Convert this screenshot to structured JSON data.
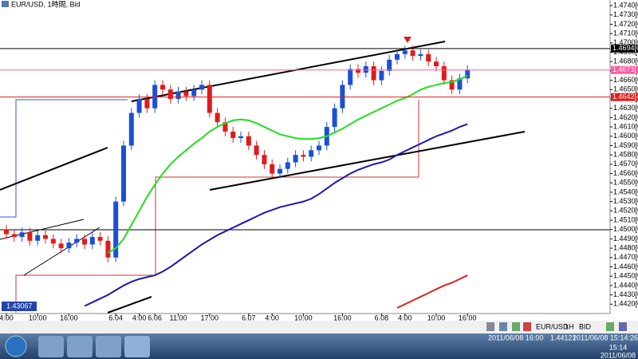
{
  "chart_data": {
    "type": "candlestick",
    "title": "EUR/USD, 1時間, Bid",
    "up_color": "#1a4fd6",
    "down_color": "#e01b1b",
    "ylim": [
      1.441,
      1.4746
    ],
    "yticks": [
      {
        "value": 1.442,
        "label": "1.4420[0]"
      },
      {
        "value": 1.443,
        "label": "1.4430[0]"
      },
      {
        "value": 1.444,
        "label": "1.4440[0]"
      },
      {
        "value": 1.445,
        "label": "1.4450[0]"
      },
      {
        "value": 1.446,
        "label": "1.4460[0]"
      },
      {
        "value": 1.447,
        "label": "1.4470[0]"
      },
      {
        "value": 1.448,
        "label": "1.4480[0]"
      },
      {
        "value": 1.449,
        "label": "1.4490[0]"
      },
      {
        "value": 1.45,
        "label": "1.4500[0]"
      },
      {
        "value": 1.451,
        "label": "1.4510[0]"
      },
      {
        "value": 1.452,
        "label": "1.4520[0]"
      },
      {
        "value": 1.453,
        "label": "1.4530[0]"
      },
      {
        "value": 1.454,
        "label": "1.4540[0]"
      },
      {
        "value": 1.455,
        "label": "1.4550[0]"
      },
      {
        "value": 1.456,
        "label": "1.4560[0]"
      },
      {
        "value": 1.457,
        "label": "1.4570[0]"
      },
      {
        "value": 1.458,
        "label": "1.4580[0]"
      },
      {
        "value": 1.459,
        "label": "1.4590[0]"
      },
      {
        "value": 1.46,
        "label": "1.4600[0]"
      },
      {
        "value": 1.461,
        "label": "1.4610[0]"
      },
      {
        "value": 1.462,
        "label": "1.4620[0]"
      },
      {
        "value": 1.463,
        "label": "1.4630[0]"
      },
      {
        "value": 1.464,
        "label": "1.4640[0]"
      },
      {
        "value": 1.465,
        "label": "1.4650[0]"
      },
      {
        "value": 1.466,
        "label": "1.4660[0]"
      },
      {
        "value": 1.467,
        "label": "1.4670[0]"
      },
      {
        "value": 1.468,
        "label": "1.4680[0]"
      },
      {
        "value": 1.469,
        "label": "1.4690[0]"
      },
      {
        "value": 1.47,
        "label": "1.4700[0]"
      },
      {
        "value": 1.471,
        "label": "1.4710[0]"
      },
      {
        "value": 1.472,
        "label": "1.4720[0]"
      },
      {
        "value": 1.473,
        "label": "1.4730[0]"
      },
      {
        "value": 1.474,
        "label": "1.4740[0]"
      }
    ],
    "categories": [
      "4:00",
      null,
      null,
      null,
      "10:00",
      null,
      null,
      null,
      "16:00",
      null,
      null,
      null,
      null,
      null,
      "6.04",
      null,
      null,
      "4:00",
      null,
      "6.06",
      null,
      null,
      "11:00",
      null,
      null,
      null,
      "17:00",
      null,
      null,
      null,
      null,
      "6.07",
      null,
      null,
      "4:00",
      null,
      null,
      null,
      "10:00",
      null,
      null,
      null,
      null,
      "16:00",
      null,
      null,
      null,
      null,
      "6.08",
      null,
      null,
      "4:00",
      null,
      null,
      null,
      "10:00",
      null,
      null,
      null,
      "16:00"
    ],
    "open": [
      1.45,
      1.4495,
      1.4492,
      1.4497,
      1.4488,
      1.4494,
      1.449,
      1.4485,
      1.448,
      1.4486,
      1.449,
      1.4484,
      1.4492,
      1.4488,
      1.447,
      1.453,
      1.459,
      1.4625,
      1.464,
      1.463,
      1.4655,
      1.465,
      1.464,
      1.4648,
      1.4643,
      1.465,
      1.4655,
      1.4625,
      1.4615,
      1.4605,
      1.4598,
      1.46,
      1.459,
      1.458,
      1.457,
      1.456,
      1.4565,
      1.4572,
      1.458,
      1.4578,
      1.4585,
      1.459,
      1.461,
      1.463,
      1.4655,
      1.4672,
      1.4668,
      1.4675,
      1.466,
      1.467,
      1.4682,
      1.4688,
      1.4692,
      1.4686,
      1.4688,
      1.468,
      1.4675,
      1.466,
      1.465,
      1.4662
    ],
    "high": [
      1.4505,
      1.45,
      1.4502,
      1.4502,
      1.4499,
      1.4499,
      1.4495,
      1.449,
      1.4491,
      1.4495,
      1.4495,
      1.4497,
      1.4497,
      1.4493,
      1.4535,
      1.4595,
      1.463,
      1.4645,
      1.4645,
      1.466,
      1.466,
      1.4655,
      1.4653,
      1.4653,
      1.4655,
      1.466,
      1.466,
      1.463,
      1.462,
      1.461,
      1.4605,
      1.4605,
      1.4595,
      1.4585,
      1.4575,
      1.457,
      1.4577,
      1.4585,
      1.4585,
      1.459,
      1.4595,
      1.4615,
      1.4635,
      1.466,
      1.4677,
      1.4677,
      1.468,
      1.468,
      1.4675,
      1.4687,
      1.4693,
      1.4697,
      1.4697,
      1.4693,
      1.4693,
      1.4685,
      1.468,
      1.4665,
      1.4667,
      1.4676
    ],
    "low": [
      1.449,
      1.4487,
      1.4487,
      1.4483,
      1.4483,
      1.4485,
      1.448,
      1.4475,
      1.4475,
      1.4481,
      1.4479,
      1.4479,
      1.4483,
      1.4465,
      1.4465,
      1.4525,
      1.4585,
      1.462,
      1.4625,
      1.4625,
      1.4645,
      1.4635,
      1.4635,
      1.4638,
      1.4638,
      1.4645,
      1.462,
      1.461,
      1.46,
      1.4593,
      1.4593,
      1.4585,
      1.4575,
      1.4565,
      1.4555,
      1.4555,
      1.456,
      1.4567,
      1.4573,
      1.4573,
      1.458,
      1.4585,
      1.4605,
      1.4625,
      1.465,
      1.4663,
      1.4663,
      1.4655,
      1.4655,
      1.4665,
      1.4677,
      1.4683,
      1.4681,
      1.4681,
      1.4675,
      1.467,
      1.4655,
      1.4645,
      1.4645,
      1.4657
    ],
    "close": [
      1.4495,
      1.4492,
      1.4497,
      1.4488,
      1.4494,
      1.449,
      1.4485,
      1.448,
      1.4486,
      1.449,
      1.4484,
      1.4492,
      1.4488,
      1.447,
      1.453,
      1.459,
      1.4625,
      1.464,
      1.463,
      1.4655,
      1.465,
      1.464,
      1.4648,
      1.4643,
      1.465,
      1.4655,
      1.4625,
      1.4615,
      1.4605,
      1.4598,
      1.46,
      1.459,
      1.458,
      1.457,
      1.456,
      1.4565,
      1.4572,
      1.458,
      1.4578,
      1.4585,
      1.459,
      1.461,
      1.463,
      1.4655,
      1.4672,
      1.4668,
      1.4675,
      1.466,
      1.467,
      1.4682,
      1.4688,
      1.4692,
      1.4686,
      1.4688,
      1.468,
      1.4675,
      1.466,
      1.465,
      1.4662,
      1.4671
    ],
    "overlays": [
      {
        "color": "#22dd22",
        "width": 2,
        "values": [
          null,
          null,
          null,
          null,
          null,
          null,
          null,
          null,
          null,
          null,
          null,
          null,
          null,
          1.4475,
          1.448,
          1.449,
          1.4505,
          1.452,
          1.4535,
          1.4548,
          1.456,
          1.457,
          1.4578,
          1.4585,
          1.4592,
          1.4598,
          1.4605,
          1.461,
          1.4614,
          1.4617,
          1.4618,
          1.4617,
          1.4614,
          1.461,
          1.4606,
          1.4602,
          1.46,
          1.4598,
          1.4597,
          1.4597,
          1.4598,
          1.46,
          1.4604,
          1.4608,
          1.4613,
          1.4618,
          1.4622,
          1.4626,
          1.463,
          1.4634,
          1.4638,
          1.4641,
          1.4645,
          1.465,
          1.4653,
          1.4655,
          1.4657,
          1.4658,
          1.4661,
          1.4665
        ]
      },
      {
        "color": "#1a1ab0",
        "width": 2,
        "values": [
          null,
          null,
          null,
          null,
          null,
          null,
          null,
          null,
          null,
          null,
          1.4418,
          1.4422,
          1.4426,
          1.443,
          1.4435,
          1.444,
          1.4444,
          1.4447,
          1.4449,
          1.4451,
          1.4455,
          1.446,
          1.4466,
          1.4472,
          1.4478,
          1.4484,
          1.4489,
          1.4494,
          1.4498,
          1.4502,
          1.4506,
          1.451,
          1.4514,
          1.4518,
          1.4521,
          1.4524,
          1.4526,
          1.4528,
          1.453,
          1.4533,
          1.4538,
          1.4544,
          1.455,
          1.4555,
          1.456,
          1.4564,
          1.4567,
          1.457,
          1.4572,
          1.4575,
          1.458,
          1.4584,
          1.4588,
          1.4592,
          1.4596,
          1.46,
          1.4603,
          1.4606,
          1.461,
          1.4613
        ]
      },
      {
        "color": "#dd2222",
        "width": 2,
        "values": [
          null,
          null,
          null,
          null,
          null,
          null,
          null,
          null,
          null,
          null,
          null,
          null,
          null,
          null,
          null,
          null,
          null,
          null,
          null,
          null,
          null,
          null,
          null,
          null,
          null,
          null,
          null,
          null,
          null,
          null,
          null,
          null,
          null,
          null,
          null,
          null,
          null,
          null,
          null,
          null,
          null,
          null,
          null,
          null,
          null,
          null,
          null,
          null,
          null,
          null,
          1.4416,
          1.442,
          1.4424,
          1.4428,
          1.4432,
          1.4436,
          1.444,
          1.4443,
          1.4447,
          1.4451
        ]
      }
    ],
    "levels": [
      {
        "value": 1.4694,
        "label": "1.4694[0]",
        "color": "#000000"
      },
      {
        "value": 1.4671,
        "label": "1.4671[",
        "color": "#ff5aa0"
      },
      {
        "value": 1.4642,
        "label": "1.4642[4]",
        "color": "#e01b1b"
      }
    ],
    "annotation": "1.43067"
  },
  "ui": {
    "symbol": "EUR/USD",
    "timeframe": "1H",
    "side": "BID",
    "status_time": "2011/06/08 16:00",
    "status_price": "1.44121",
    "server_time": "2011/06/08 15:14:26",
    "clock": "15:14",
    "date": "2011/06/08"
  }
}
